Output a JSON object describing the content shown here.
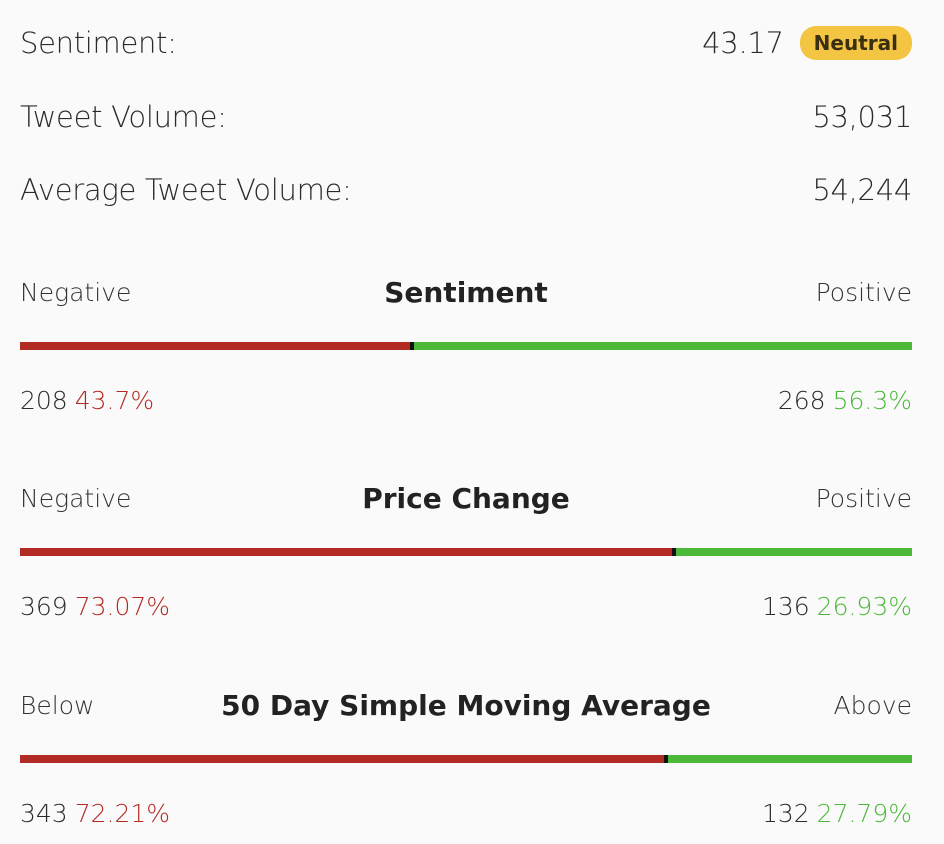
{
  "summary": {
    "sentiment_label": "Sentiment:",
    "sentiment_value": "43.17",
    "sentiment_badge": "Neutral",
    "tweet_volume_label": "Tweet Volume:",
    "tweet_volume_value": "53,031",
    "avg_tweet_volume_label": "Average Tweet Volume:",
    "avg_tweet_volume_value": "54,244"
  },
  "sections": [
    {
      "title": "Sentiment",
      "left_label": "Negative",
      "right_label": "Positive",
      "left_count": "208",
      "left_pct": "43.7%",
      "right_count": "268",
      "right_pct": "56.3%",
      "left_fraction": 0.437
    },
    {
      "title": "Price Change",
      "left_label": "Negative",
      "right_label": "Positive",
      "left_count": "369",
      "left_pct": "73.07%",
      "right_count": "136",
      "right_pct": "26.93%",
      "left_fraction": 0.7307
    },
    {
      "title": "50 Day Simple Moving Average",
      "left_label": "Below",
      "right_label": "Above",
      "left_count": "343",
      "left_pct": "72.21%",
      "right_count": "132",
      "right_pct": "27.79%",
      "left_fraction": 0.7221
    }
  ],
  "colors": {
    "negative": "#b22a24",
    "positive": "#4cb83a",
    "badge": "#f4c542"
  }
}
